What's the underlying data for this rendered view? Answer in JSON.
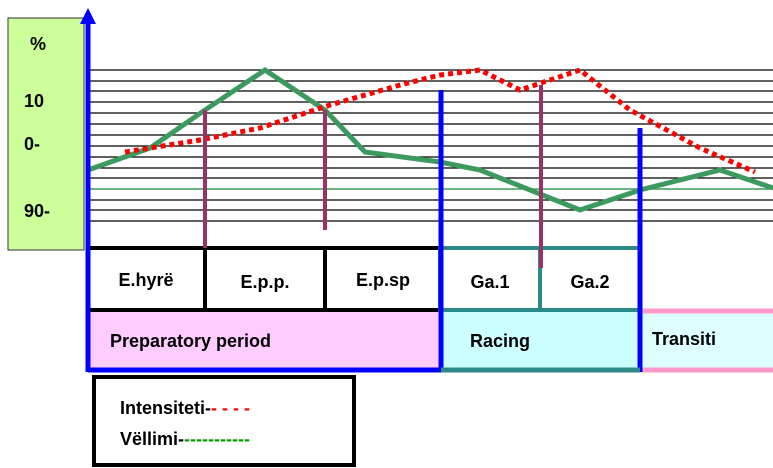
{
  "axis": {
    "unit": "%",
    "labels": [
      "10",
      "0-",
      "90-"
    ]
  },
  "phases": [
    "E.hyrë",
    "E.p.p.",
    "E.p.sp",
    "Ga.1",
    "Ga.2"
  ],
  "periods": [
    "Preparatory period",
    "Racing",
    "Transiti"
  ],
  "legend": [
    {
      "name": "Intensiteti-",
      "sample": "- - - -"
    },
    {
      "name": "Vëllimi-",
      "sample": "-----------"
    }
  ]
}
